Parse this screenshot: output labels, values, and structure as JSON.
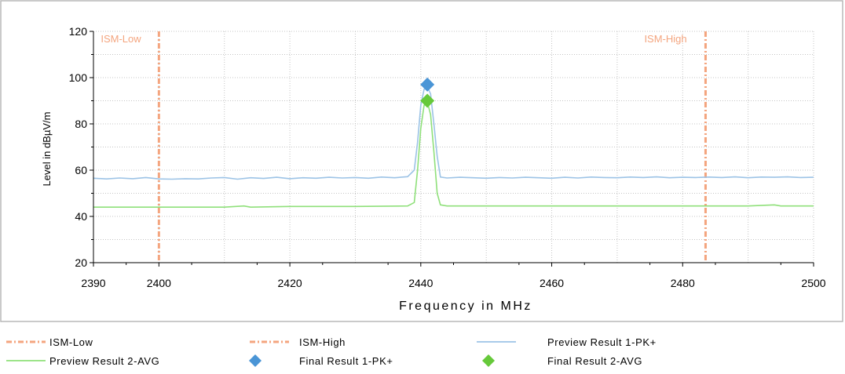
{
  "chart_data": {
    "type": "line",
    "title": "",
    "xlabel": "Frequency in MHz",
    "ylabel": "Level in dBµV/m",
    "xlim": [
      2390,
      2500
    ],
    "ylim": [
      20,
      120
    ],
    "x_ticks": [
      "2390",
      "2400",
      "2420",
      "2440",
      "2460",
      "2480",
      "2500"
    ],
    "x_tick_values": [
      2390,
      2400,
      2420,
      2440,
      2460,
      2480,
      2500
    ],
    "y_ticks": [
      "20",
      "40",
      "60",
      "80",
      "100",
      "120"
    ],
    "y_tick_values": [
      20,
      40,
      60,
      80,
      100,
      120
    ],
    "grid": true,
    "legend_position": "bottom",
    "limit_lines": [
      {
        "name": "ISM-Low",
        "x": 2400,
        "color": "#f4a57f"
      },
      {
        "name": "ISM-High",
        "x": 2483.5,
        "color": "#f4a57f"
      }
    ],
    "series": [
      {
        "name": "Preview Result 1-PK+",
        "color": "#9cc3e6",
        "x": [
          2390,
          2392,
          2394,
          2396,
          2398,
          2400,
          2402,
          2404,
          2406,
          2408,
          2410,
          2412,
          2414,
          2416,
          2418,
          2420,
          2422,
          2424,
          2426,
          2428,
          2430,
          2432,
          2434,
          2436,
          2438,
          2439,
          2439.5,
          2440,
          2440.5,
          2441,
          2441.5,
          2442,
          2442.5,
          2443,
          2444,
          2446,
          2448,
          2450,
          2452,
          2454,
          2456,
          2458,
          2460,
          2462,
          2464,
          2466,
          2468,
          2470,
          2472,
          2474,
          2476,
          2478,
          2480,
          2482,
          2484,
          2486,
          2488,
          2490,
          2492,
          2494,
          2496,
          2498,
          2500
        ],
        "values": [
          56.5,
          56.2,
          56.6,
          56.3,
          56.8,
          56.2,
          56.1,
          56.3,
          56.2,
          56.6,
          56.8,
          56.1,
          56.7,
          56.4,
          56.9,
          56.3,
          56.7,
          56.5,
          56.9,
          56.6,
          56.8,
          56.5,
          57.0,
          56.7,
          57.2,
          60,
          72,
          88,
          95,
          96,
          93,
          80,
          66,
          57,
          56.6,
          56.9,
          56.7,
          56.5,
          56.8,
          56.6,
          56.9,
          56.7,
          56.5,
          56.9,
          56.6,
          57.0,
          56.8,
          56.7,
          57.0,
          56.8,
          57.1,
          56.7,
          56.9,
          56.8,
          57.0,
          56.8,
          57.1,
          56.7,
          57.0,
          56.9,
          57.1,
          56.8,
          56.9
        ]
      },
      {
        "name": "Preview Result 2-AVG",
        "color": "#8fe07a",
        "x": [
          2390,
          2400,
          2410,
          2413,
          2414,
          2420,
          2430,
          2438,
          2439,
          2439.5,
          2440,
          2440.5,
          2441,
          2441.5,
          2442,
          2442.5,
          2443,
          2444,
          2450,
          2460,
          2470,
          2480,
          2490,
          2494,
          2495,
          2500
        ],
        "values": [
          44.0,
          44.0,
          44.0,
          44.5,
          44.0,
          44.3,
          44.3,
          44.5,
          46,
          60,
          78,
          88,
          89.5,
          84,
          68,
          50,
          45,
          44.5,
          44.5,
          44.5,
          44.5,
          44.5,
          44.5,
          45,
          44.5,
          44.5
        ]
      }
    ],
    "markers": [
      {
        "name": "Final Result 1-PK+",
        "x": [
          2441
        ],
        "values": [
          97
        ],
        "color": "#4a95d6",
        "shape": "diamond"
      },
      {
        "name": "Final Result 2-AVG",
        "x": [
          2441
        ],
        "values": [
          90
        ],
        "color": "#66c93a",
        "shape": "diamond"
      }
    ]
  }
}
